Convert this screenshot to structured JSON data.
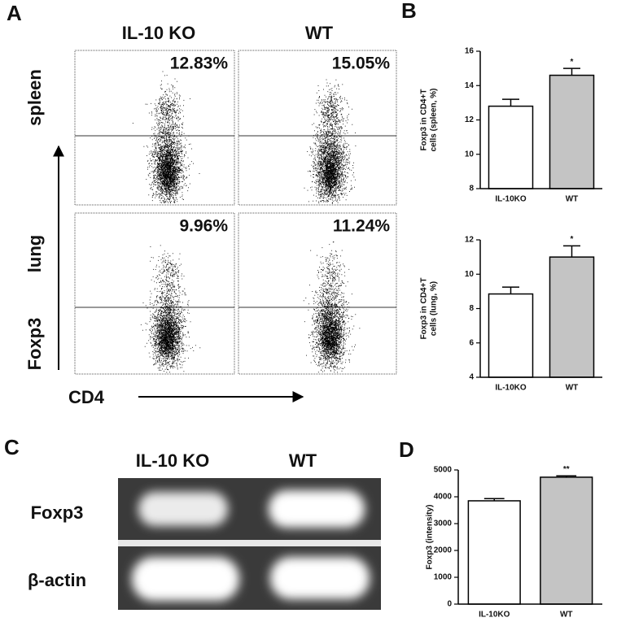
{
  "panels": [
    "A",
    "B",
    "C",
    "D"
  ],
  "flow": {
    "columns": [
      "IL-10 KO",
      "WT"
    ],
    "rows": [
      "spleen",
      "lung"
    ],
    "percentages": [
      [
        "12.83%",
        "15.05%"
      ],
      [
        "9.96%",
        "11.24%"
      ]
    ],
    "y_axis_label": "Foxp3",
    "x_axis_label": "CD4"
  },
  "gel": {
    "columns": [
      "IL-10 KO",
      "WT"
    ],
    "rows": [
      "Foxp3",
      "β-actin"
    ]
  },
  "chart_data": [
    {
      "type": "bar",
      "ylabel": [
        "Foxp3 in CD4+T",
        "cells (spleen, %)"
      ],
      "categories": [
        "IL-10KO",
        "WT"
      ],
      "values": [
        12.8,
        14.6
      ],
      "errors": [
        0.4,
        0.4
      ],
      "colors": [
        "#ffffff",
        "#c4c4c4"
      ],
      "value_annotations": [
        null,
        "*"
      ],
      "ylim": [
        8,
        16
      ],
      "yticks": [
        8,
        10,
        12,
        14,
        16
      ]
    },
    {
      "type": "bar",
      "ylabel": [
        "Foxp3 in CD4+T",
        "cells (lung, %)"
      ],
      "categories": [
        "IL-10KO",
        "WT"
      ],
      "values": [
        8.85,
        11.0
      ],
      "errors": [
        0.4,
        0.65
      ],
      "colors": [
        "#ffffff",
        "#c4c4c4"
      ],
      "value_annotations": [
        null,
        "*"
      ],
      "ylim": [
        4,
        12
      ],
      "yticks": [
        4,
        6,
        8,
        10,
        12
      ]
    },
    {
      "type": "bar",
      "ylabel": [
        "Foxp3 (intensity)"
      ],
      "categories": [
        "IL-10KO",
        "WT"
      ],
      "values": [
        3850,
        4730
      ],
      "errors": [
        80,
        50
      ],
      "colors": [
        "#ffffff",
        "#c4c4c4"
      ],
      "value_annotations": [
        null,
        "**"
      ],
      "ylim": [
        0,
        5000
      ],
      "yticks": [
        0,
        1000,
        2000,
        3000,
        4000,
        5000
      ]
    }
  ]
}
